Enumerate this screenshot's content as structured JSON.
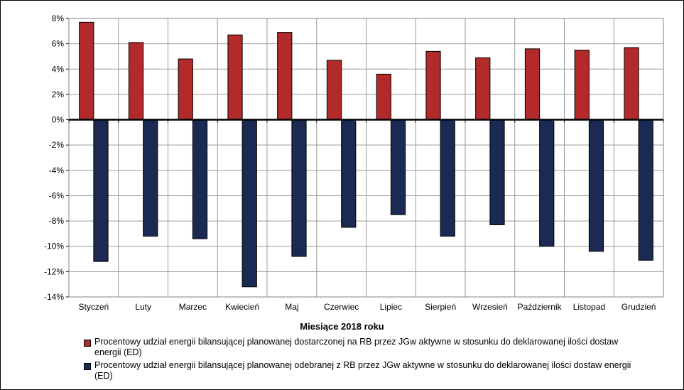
{
  "chart_data": {
    "type": "bar",
    "xlabel": "Miesiące 2018  roku",
    "ylabel": "",
    "ylim": [
      -14,
      8
    ],
    "yticks": [
      8,
      6,
      4,
      2,
      0,
      -2,
      -4,
      -6,
      -8,
      -10,
      -12,
      -14
    ],
    "ytick_labels": [
      "8%",
      "6%",
      "4%",
      "2%",
      "0%",
      "-2%",
      "-4%",
      "-6%",
      "-8%",
      "-10%",
      "-12%",
      "-14%"
    ],
    "grid": true,
    "legend_position": "bottom",
    "categories": [
      "Styczeń",
      "Luty",
      "Marzec",
      "Kwiecień",
      "Maj",
      "Czerwiec",
      "Lipiec",
      "Sierpień",
      "Wrzesień",
      "Październik",
      "Listopad",
      "Grudzień"
    ],
    "series": [
      {
        "name": "Procentowy udział energii bilansującej planowanej dostarczonej na RB przez JGw aktywne w stosunku do deklarowanej ilości dostaw energii (ED)",
        "color": "#b22a2a",
        "values": [
          7.7,
          6.1,
          4.8,
          6.7,
          6.9,
          4.7,
          3.6,
          5.4,
          4.9,
          5.6,
          5.5,
          5.7
        ]
      },
      {
        "name": "Procentowy udział energii bilansującej planowanej odebranej z RB przez JGw aktywne w stosunku do deklarowanej ilości dostaw energii (ED)",
        "color": "#1a2a52",
        "values": [
          -11.2,
          -9.2,
          -9.4,
          -13.2,
          -10.8,
          -8.5,
          -7.5,
          -9.2,
          -8.3,
          -10.0,
          -10.4,
          -11.1
        ]
      }
    ]
  }
}
